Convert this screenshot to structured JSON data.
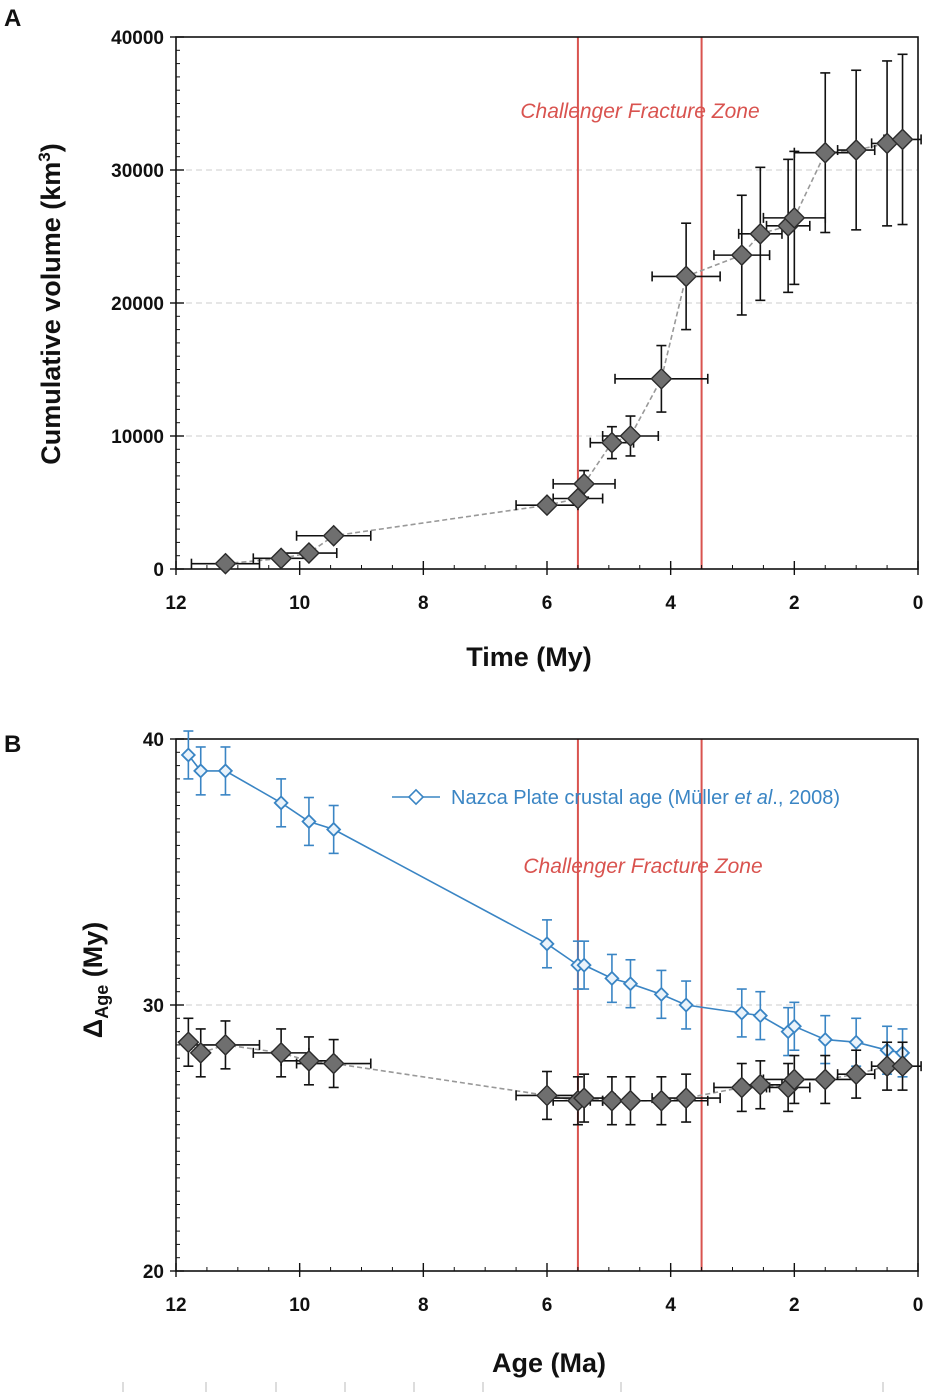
{
  "chart_data": [
    {
      "panel": "A",
      "type": "scatter",
      "xlabel": "Time (My)",
      "ylabel_main": "Cumulative volume (km",
      "ylabel_sup": "3",
      "ylabel_end": ")",
      "xlim": [
        12,
        0
      ],
      "ylim": [
        0,
        40000
      ],
      "x_ticks": [
        12,
        10,
        8,
        6,
        4,
        2,
        0
      ],
      "y_ticks": [
        0,
        10000,
        20000,
        30000,
        40000
      ],
      "x_tick_labels": [
        "12",
        "10",
        "8",
        "6",
        "4",
        "2",
        "0"
      ],
      "y_tick_labels": [
        "0",
        "10000",
        "20000",
        "30000",
        "40000"
      ],
      "gridlines_y": [
        10000,
        20000,
        30000
      ],
      "fracture_zone": {
        "label": "Challenger Fracture Zone",
        "x_start": 5.5,
        "x_end": 3.5,
        "color": "#d9534f"
      },
      "series": [
        {
          "name": "Cumulative volume",
          "color": "#6f6f6f",
          "line_color": "#999999",
          "line_style": "dashed",
          "points": [
            {
              "x": 11.2,
              "y": 400,
              "xerr": 0.55,
              "yerr": 0
            },
            {
              "x": 10.3,
              "y": 800,
              "xerr": 0.45,
              "yerr": 0
            },
            {
              "x": 9.85,
              "y": 1200,
              "xerr": 0.45,
              "yerr": 0
            },
            {
              "x": 9.45,
              "y": 2500,
              "xerr": 0.6,
              "yerr": 0
            },
            {
              "x": 6.0,
              "y": 4800,
              "xerr": 0.5,
              "yerr": 0
            },
            {
              "x": 5.5,
              "y": 5300,
              "xerr": 0.4,
              "yerr": 0
            },
            {
              "x": 5.4,
              "y": 6400,
              "xerr": 0.5,
              "yerr": 1000
            },
            {
              "x": 4.95,
              "y": 9500,
              "xerr": 0.35,
              "yerr": 1200
            },
            {
              "x": 4.65,
              "y": 10000,
              "xerr": 0.45,
              "yerr": 1500
            },
            {
              "x": 4.15,
              "y": 14300,
              "xerr": 0.75,
              "yerr": 2500
            },
            {
              "x": 3.75,
              "y": 22000,
              "xerr": 0.55,
              "yerr": 4000
            },
            {
              "x": 2.85,
              "y": 23600,
              "xerr": 0.45,
              "yerr": 4500
            },
            {
              "x": 2.55,
              "y": 25200,
              "xerr": 0.35,
              "yerr": 5000
            },
            {
              "x": 2.1,
              "y": 25800,
              "xerr": 0.35,
              "yerr": 5000
            },
            {
              "x": 2.0,
              "y": 26400,
              "xerr": 0.5,
              "yerr": 5000
            },
            {
              "x": 1.5,
              "y": 31300,
              "xerr": 0.5,
              "yerr": 6000
            },
            {
              "x": 1.0,
              "y": 31500,
              "xerr": 0.3,
              "yerr": 6000
            },
            {
              "x": 0.5,
              "y": 32000,
              "xerr": 0.25,
              "yerr": 6200
            },
            {
              "x": 0.25,
              "y": 32300,
              "xerr": 0.3,
              "yerr": 6400
            }
          ]
        }
      ]
    },
    {
      "panel": "B",
      "type": "scatter",
      "xlabel": "Age (Ma)",
      "ylabel_main": "Δ",
      "ylabel_sub": "Age",
      "ylabel_end": " (My)",
      "xlim": [
        12,
        0
      ],
      "ylim": [
        20,
        40
      ],
      "x_ticks": [
        12,
        10,
        8,
        6,
        4,
        2,
        0
      ],
      "y_ticks": [
        20,
        30,
        40
      ],
      "x_tick_labels": [
        "12",
        "10",
        "8",
        "6",
        "4",
        "2",
        "0"
      ],
      "y_tick_labels": [
        "20",
        "30",
        "40"
      ],
      "gridlines_y": [
        30
      ],
      "fracture_zone": {
        "label": "Challenger Fracture Zone",
        "x_start": 5.5,
        "x_end": 3.5,
        "color": "#d9534f"
      },
      "legend": {
        "position": "top-right",
        "text_before": "Nazca Plate crustal age (Müller ",
        "text_italic": "et al",
        "text_after": "., 2008)"
      },
      "series": [
        {
          "name": "Nazca Plate crustal age (Müller et al., 2008)",
          "color": "#3a85c4",
          "line_style": "solid",
          "points": [
            {
              "x": 11.8,
              "y": 39.4,
              "yerr": 0.9
            },
            {
              "x": 11.6,
              "y": 38.8,
              "yerr": 0.9
            },
            {
              "x": 11.2,
              "y": 38.8,
              "yerr": 0.9
            },
            {
              "x": 10.3,
              "y": 37.6,
              "yerr": 0.9
            },
            {
              "x": 9.85,
              "y": 36.9,
              "yerr": 0.9
            },
            {
              "x": 9.45,
              "y": 36.6,
              "yerr": 0.9
            },
            {
              "x": 6.0,
              "y": 32.3,
              "yerr": 0.9
            },
            {
              "x": 5.5,
              "y": 31.5,
              "yerr": 0.9
            },
            {
              "x": 5.4,
              "y": 31.5,
              "yerr": 0.9
            },
            {
              "x": 4.95,
              "y": 31.0,
              "yerr": 0.9
            },
            {
              "x": 4.65,
              "y": 30.8,
              "yerr": 0.9
            },
            {
              "x": 4.15,
              "y": 30.4,
              "yerr": 0.9
            },
            {
              "x": 3.75,
              "y": 30.0,
              "yerr": 0.9
            },
            {
              "x": 2.85,
              "y": 29.7,
              "yerr": 0.9
            },
            {
              "x": 2.55,
              "y": 29.6,
              "yerr": 0.9
            },
            {
              "x": 2.1,
              "y": 29.0,
              "yerr": 0.9
            },
            {
              "x": 2.0,
              "y": 29.2,
              "yerr": 0.9
            },
            {
              "x": 1.5,
              "y": 28.7,
              "yerr": 0.9
            },
            {
              "x": 1.0,
              "y": 28.6,
              "yerr": 0.9
            },
            {
              "x": 0.5,
              "y": 28.3,
              "yerr": 0.9
            },
            {
              "x": 0.25,
              "y": 28.2,
              "yerr": 0.9
            }
          ]
        },
        {
          "name": "Delta age",
          "color": "#6f6f6f",
          "line_color": "#999999",
          "line_style": "dashed",
          "points": [
            {
              "x": 11.8,
              "y": 28.6,
              "xerr": 0,
              "yerr": 0.9
            },
            {
              "x": 11.6,
              "y": 28.2,
              "xerr": 0,
              "yerr": 0.9
            },
            {
              "x": 11.2,
              "y": 28.5,
              "xerr": 0.55,
              "yerr": 0.9
            },
            {
              "x": 10.3,
              "y": 28.2,
              "xerr": 0.45,
              "yerr": 0.9
            },
            {
              "x": 9.85,
              "y": 27.9,
              "xerr": 0.45,
              "yerr": 0.9
            },
            {
              "x": 9.45,
              "y": 27.8,
              "xerr": 0.6,
              "yerr": 0.9
            },
            {
              "x": 6.0,
              "y": 26.6,
              "xerr": 0.5,
              "yerr": 0.9
            },
            {
              "x": 5.5,
              "y": 26.4,
              "xerr": 0.4,
              "yerr": 0.9
            },
            {
              "x": 5.4,
              "y": 26.5,
              "xerr": 0.5,
              "yerr": 0.9
            },
            {
              "x": 4.95,
              "y": 26.4,
              "xerr": 0.35,
              "yerr": 0.9
            },
            {
              "x": 4.65,
              "y": 26.4,
              "xerr": 0.45,
              "yerr": 0.9
            },
            {
              "x": 4.15,
              "y": 26.4,
              "xerr": 0.75,
              "yerr": 0.9
            },
            {
              "x": 3.75,
              "y": 26.5,
              "xerr": 0.55,
              "yerr": 0.9
            },
            {
              "x": 2.85,
              "y": 26.9,
              "xerr": 0.45,
              "yerr": 0.9
            },
            {
              "x": 2.55,
              "y": 27.0,
              "xerr": 0.35,
              "yerr": 0.9
            },
            {
              "x": 2.1,
              "y": 26.9,
              "xerr": 0.35,
              "yerr": 0.9
            },
            {
              "x": 2.0,
              "y": 27.2,
              "xerr": 0.5,
              "yerr": 0.9
            },
            {
              "x": 1.5,
              "y": 27.2,
              "xerr": 0.5,
              "yerr": 0.9
            },
            {
              "x": 1.0,
              "y": 27.4,
              "xerr": 0.3,
              "yerr": 0.9
            },
            {
              "x": 0.5,
              "y": 27.7,
              "xerr": 0.25,
              "yerr": 0.9
            },
            {
              "x": 0.25,
              "y": 27.7,
              "xerr": 0.3,
              "yerr": 0.9
            }
          ]
        }
      ]
    }
  ]
}
